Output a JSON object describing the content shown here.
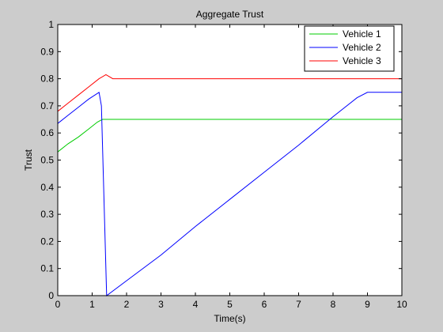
{
  "chart_data": {
    "type": "line",
    "title": "Aggregate Trust",
    "xlabel": "Time(s)",
    "ylabel": "Trust",
    "xlim": [
      0,
      10
    ],
    "ylim": [
      0,
      1
    ],
    "xticks": [
      0,
      1,
      2,
      3,
      4,
      5,
      6,
      7,
      8,
      9,
      10
    ],
    "xtick_labels": [
      "0",
      "1",
      "2",
      "3",
      "4",
      "5",
      "6",
      "7",
      "8",
      "9",
      "10"
    ],
    "yticks": [
      0,
      0.1,
      0.2,
      0.3,
      0.4,
      0.5,
      0.6,
      0.7,
      0.8,
      0.9,
      1
    ],
    "ytick_labels": [
      "0",
      "0.1",
      "0.2",
      "0.3",
      "0.4",
      "0.5",
      "0.6",
      "0.7",
      "0.8",
      "0.9",
      "1"
    ],
    "grid": false,
    "legend_position": "top-right",
    "series": [
      {
        "name": "Vehicle 1",
        "color": "#00cc00",
        "x": [
          0,
          0.3,
          0.6,
          0.9,
          1.15,
          1.3,
          10
        ],
        "y": [
          0.53,
          0.56,
          0.585,
          0.615,
          0.64,
          0.65,
          0.65
        ]
      },
      {
        "name": "Vehicle 2",
        "color": "#0000ff",
        "x": [
          0,
          0.3,
          0.6,
          0.9,
          1.2,
          1.27,
          1.42,
          2,
          3,
          4,
          5,
          6,
          7,
          8,
          8.7,
          9,
          10
        ],
        "y": [
          0.635,
          0.665,
          0.695,
          0.725,
          0.75,
          0.7,
          0,
          0.055,
          0.15,
          0.255,
          0.355,
          0.455,
          0.555,
          0.66,
          0.73,
          0.75,
          0.75
        ]
      },
      {
        "name": "Vehicle 3",
        "color": "#ff0000",
        "x": [
          0,
          0.3,
          0.6,
          0.9,
          1.2,
          1.4,
          1.6,
          10
        ],
        "y": [
          0.68,
          0.71,
          0.74,
          0.77,
          0.8,
          0.815,
          0.8,
          0.8
        ]
      }
    ]
  }
}
